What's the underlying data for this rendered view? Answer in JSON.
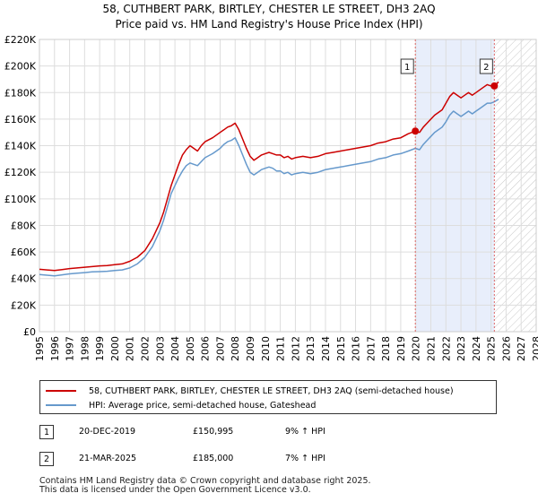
{
  "chart_data": {
    "type": "line",
    "title": "58, CUTHBERT PARK, BIRTLEY, CHESTER LE STREET, DH3 2AQ",
    "subtitle": "Price paid vs. HM Land Registry's House Price Index (HPI)",
    "xlim": [
      1995,
      2028
    ],
    "ylim": [
      0,
      220000
    ],
    "x_ticks": [
      "1995",
      "1996",
      "1997",
      "1998",
      "1999",
      "2000",
      "2001",
      "2002",
      "2003",
      "2004",
      "2005",
      "2006",
      "2007",
      "2008",
      "2009",
      "2010",
      "2011",
      "2012",
      "2013",
      "2014",
      "2015",
      "2016",
      "2017",
      "2018",
      "2019",
      "2020",
      "2021",
      "2022",
      "2023",
      "2024",
      "2025",
      "2026",
      "2027",
      "2028"
    ],
    "y_ticks": [
      {
        "value": 0,
        "label": "£0"
      },
      {
        "value": 20000,
        "label": "£20K"
      },
      {
        "value": 40000,
        "label": "£40K"
      },
      {
        "value": 60000,
        "label": "£60K"
      },
      {
        "value": 80000,
        "label": "£80K"
      },
      {
        "value": 100000,
        "label": "£100K"
      },
      {
        "value": 120000,
        "label": "£120K"
      },
      {
        "value": 140000,
        "label": "£140K"
      },
      {
        "value": 160000,
        "label": "£160K"
      },
      {
        "value": 180000,
        "label": "£180K"
      },
      {
        "value": 200000,
        "label": "£200K"
      },
      {
        "value": 220000,
        "label": "£220K"
      }
    ],
    "grid": true,
    "series": [
      {
        "name": "58, CUTHBERT PARK, BIRTLEY, CHESTER LE STREET, DH3 2AQ (semi-detached house)",
        "color": "#cc0000",
        "points": [
          [
            1995.0,
            47000
          ],
          [
            1995.5,
            46500
          ],
          [
            1996.0,
            46000
          ],
          [
            1996.5,
            46800
          ],
          [
            1997.0,
            47500
          ],
          [
            1997.5,
            48000
          ],
          [
            1998.0,
            48500
          ],
          [
            1998.5,
            49000
          ],
          [
            1999.0,
            49500
          ],
          [
            1999.5,
            49800
          ],
          [
            2000.0,
            50500
          ],
          [
            2000.5,
            51000
          ],
          [
            2001.0,
            53000
          ],
          [
            2001.5,
            56000
          ],
          [
            2002.0,
            61000
          ],
          [
            2002.5,
            70000
          ],
          [
            2003.0,
            82000
          ],
          [
            2003.25,
            90000
          ],
          [
            2003.5,
            100000
          ],
          [
            2003.75,
            110000
          ],
          [
            2004.0,
            118000
          ],
          [
            2004.25,
            126000
          ],
          [
            2004.5,
            133000
          ],
          [
            2004.75,
            137000
          ],
          [
            2005.0,
            140000
          ],
          [
            2005.25,
            138000
          ],
          [
            2005.5,
            136000
          ],
          [
            2005.75,
            140000
          ],
          [
            2006.0,
            143000
          ],
          [
            2006.5,
            146000
          ],
          [
            2006.75,
            148000
          ],
          [
            2007.0,
            150000
          ],
          [
            2007.25,
            152000
          ],
          [
            2007.5,
            154000
          ],
          [
            2007.75,
            155000
          ],
          [
            2008.0,
            157000
          ],
          [
            2008.25,
            152000
          ],
          [
            2008.5,
            145000
          ],
          [
            2008.75,
            138000
          ],
          [
            2009.0,
            132000
          ],
          [
            2009.25,
            129000
          ],
          [
            2009.5,
            131000
          ],
          [
            2009.75,
            133000
          ],
          [
            2010.0,
            134000
          ],
          [
            2010.25,
            135000
          ],
          [
            2010.5,
            134000
          ],
          [
            2010.75,
            133000
          ],
          [
            2011.0,
            133000
          ],
          [
            2011.25,
            131000
          ],
          [
            2011.5,
            132000
          ],
          [
            2011.75,
            130000
          ],
          [
            2012.0,
            131000
          ],
          [
            2012.5,
            132000
          ],
          [
            2013.0,
            131000
          ],
          [
            2013.5,
            132000
          ],
          [
            2014.0,
            134000
          ],
          [
            2014.5,
            135000
          ],
          [
            2015.0,
            136000
          ],
          [
            2015.5,
            137000
          ],
          [
            2016.0,
            138000
          ],
          [
            2016.5,
            139000
          ],
          [
            2017.0,
            140000
          ],
          [
            2017.5,
            142000
          ],
          [
            2018.0,
            143000
          ],
          [
            2018.5,
            145000
          ],
          [
            2019.0,
            146000
          ],
          [
            2019.5,
            149000
          ],
          [
            2019.97,
            150995
          ],
          [
            2020.25,
            150000
          ],
          [
            2020.5,
            154000
          ],
          [
            2020.75,
            157000
          ],
          [
            2021.0,
            160000
          ],
          [
            2021.25,
            163000
          ],
          [
            2021.5,
            165000
          ],
          [
            2021.75,
            167000
          ],
          [
            2022.0,
            172000
          ],
          [
            2022.25,
            177000
          ],
          [
            2022.5,
            180000
          ],
          [
            2022.75,
            178000
          ],
          [
            2023.0,
            176000
          ],
          [
            2023.25,
            178000
          ],
          [
            2023.5,
            180000
          ],
          [
            2023.75,
            178000
          ],
          [
            2024.0,
            180000
          ],
          [
            2024.25,
            182000
          ],
          [
            2024.5,
            184000
          ],
          [
            2024.75,
            186000
          ],
          [
            2025.0,
            185000
          ],
          [
            2025.22,
            185000
          ],
          [
            2025.5,
            188000
          ]
        ]
      },
      {
        "name": "HPI: Average price, semi-detached house, Gateshead",
        "color": "#6699cc",
        "points": [
          [
            1995.0,
            43000
          ],
          [
            1995.5,
            42500
          ],
          [
            1996.0,
            42000
          ],
          [
            1996.5,
            42800
          ],
          [
            1997.0,
            43500
          ],
          [
            1997.5,
            44000
          ],
          [
            1998.0,
            44500
          ],
          [
            1998.5,
            45000
          ],
          [
            1999.0,
            45200
          ],
          [
            1999.5,
            45500
          ],
          [
            2000.0,
            46000
          ],
          [
            2000.5,
            46500
          ],
          [
            2001.0,
            48000
          ],
          [
            2001.5,
            51000
          ],
          [
            2002.0,
            56000
          ],
          [
            2002.5,
            64000
          ],
          [
            2003.0,
            76000
          ],
          [
            2003.25,
            84000
          ],
          [
            2003.5,
            94000
          ],
          [
            2003.75,
            104000
          ],
          [
            2004.0,
            110000
          ],
          [
            2004.25,
            116000
          ],
          [
            2004.5,
            121000
          ],
          [
            2004.75,
            125000
          ],
          [
            2005.0,
            127000
          ],
          [
            2005.25,
            126000
          ],
          [
            2005.5,
            125000
          ],
          [
            2005.75,
            128000
          ],
          [
            2006.0,
            131000
          ],
          [
            2006.5,
            134000
          ],
          [
            2006.75,
            136000
          ],
          [
            2007.0,
            138000
          ],
          [
            2007.25,
            141000
          ],
          [
            2007.5,
            143000
          ],
          [
            2007.75,
            144000
          ],
          [
            2008.0,
            146000
          ],
          [
            2008.25,
            140000
          ],
          [
            2008.5,
            133000
          ],
          [
            2008.75,
            126000
          ],
          [
            2009.0,
            120000
          ],
          [
            2009.25,
            118000
          ],
          [
            2009.5,
            120000
          ],
          [
            2009.75,
            122000
          ],
          [
            2010.0,
            123000
          ],
          [
            2010.25,
            124000
          ],
          [
            2010.5,
            123000
          ],
          [
            2010.75,
            121000
          ],
          [
            2011.0,
            121000
          ],
          [
            2011.25,
            119000
          ],
          [
            2011.5,
            120000
          ],
          [
            2011.75,
            118000
          ],
          [
            2012.0,
            119000
          ],
          [
            2012.5,
            120000
          ],
          [
            2013.0,
            119000
          ],
          [
            2013.5,
            120000
          ],
          [
            2014.0,
            122000
          ],
          [
            2014.5,
            123000
          ],
          [
            2015.0,
            124000
          ],
          [
            2015.5,
            125000
          ],
          [
            2016.0,
            126000
          ],
          [
            2016.5,
            127000
          ],
          [
            2017.0,
            128000
          ],
          [
            2017.5,
            130000
          ],
          [
            2018.0,
            131000
          ],
          [
            2018.5,
            133000
          ],
          [
            2019.0,
            134000
          ],
          [
            2019.5,
            136000
          ],
          [
            2019.97,
            138000
          ],
          [
            2020.25,
            137000
          ],
          [
            2020.5,
            141000
          ],
          [
            2020.75,
            144000
          ],
          [
            2021.0,
            147000
          ],
          [
            2021.25,
            150000
          ],
          [
            2021.5,
            152000
          ],
          [
            2021.75,
            154000
          ],
          [
            2022.0,
            158000
          ],
          [
            2022.25,
            163000
          ],
          [
            2022.5,
            166000
          ],
          [
            2022.75,
            164000
          ],
          [
            2023.0,
            162000
          ],
          [
            2023.25,
            164000
          ],
          [
            2023.5,
            166000
          ],
          [
            2023.75,
            164000
          ],
          [
            2024.0,
            166000
          ],
          [
            2024.25,
            168000
          ],
          [
            2024.5,
            170000
          ],
          [
            2024.75,
            172000
          ],
          [
            2025.0,
            172000
          ],
          [
            2025.22,
            173000
          ],
          [
            2025.5,
            175000
          ]
        ]
      }
    ],
    "markers": [
      {
        "label": "1",
        "x": 2019.97,
        "y": 150995
      },
      {
        "label": "2",
        "x": 2025.22,
        "y": 185000
      }
    ],
    "shaded_span": [
      2019.97,
      2025.22
    ],
    "hatched_from": 2025.22
  },
  "legend": {
    "property_label": "58, CUTHBERT PARK, BIRTLEY, CHESTER LE STREET, DH3 2AQ (semi-detached house)",
    "hpi_label": "HPI: Average price, semi-detached house, Gateshead"
  },
  "transactions": [
    {
      "num": "1",
      "date": "20-DEC-2019",
      "price": "£150,995",
      "hpi": "9% ↑ HPI"
    },
    {
      "num": "2",
      "date": "21-MAR-2025",
      "price": "£185,000",
      "hpi": "7% ↑ HPI"
    }
  ],
  "footer": {
    "line1": "Contains HM Land Registry data © Crown copyright and database right 2025.",
    "line2": "This data is licensed under the Open Government Licence v3.0."
  }
}
